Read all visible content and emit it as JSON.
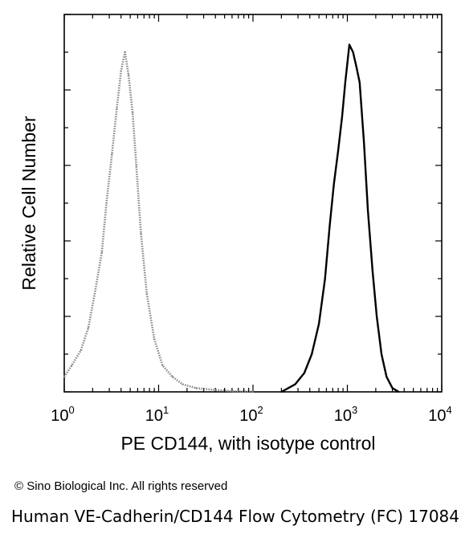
{
  "chart_data": {
    "type": "area",
    "title": "",
    "xlabel": "PE CD144, with isotype control",
    "ylabel": "Relative Cell Number",
    "x_scale": "log",
    "xlim": [
      1,
      10000
    ],
    "ylim": [
      0,
      1
    ],
    "x_ticks": [
      {
        "base": "10",
        "exp": "0",
        "value": 1
      },
      {
        "base": "10",
        "exp": "1",
        "value": 10
      },
      {
        "base": "10",
        "exp": "2",
        "value": 100
      },
      {
        "base": "10",
        "exp": "3",
        "value": 1000
      },
      {
        "base": "10",
        "exp": "4",
        "value": 10000
      }
    ],
    "grid": false,
    "series": [
      {
        "color": "#888888",
        "style": "dotted",
        "x": [
          1.0,
          1.2,
          1.5,
          1.8,
          2.1,
          2.5,
          2.8,
          3.2,
          3.6,
          4.0,
          4.4,
          4.8,
          5.3,
          5.8,
          6.5,
          7.5,
          9.0,
          11,
          14,
          18,
          25,
          40,
          60,
          100
        ],
        "y": [
          0.04,
          0.07,
          0.11,
          0.17,
          0.26,
          0.37,
          0.5,
          0.63,
          0.75,
          0.85,
          0.9,
          0.84,
          0.74,
          0.6,
          0.42,
          0.26,
          0.14,
          0.07,
          0.04,
          0.02,
          0.01,
          0.005,
          0.002,
          0.0
        ]
      },
      {
        "color": "#000000",
        "style": "solid",
        "x": [
          200,
          280,
          350,
          420,
          500,
          580,
          650,
          720,
          800,
          880,
          950,
          1050,
          1150,
          1250,
          1350,
          1500,
          1650,
          1850,
          2050,
          2300,
          2600,
          3000,
          3500
        ],
        "y": [
          0.0,
          0.02,
          0.05,
          0.1,
          0.18,
          0.3,
          0.44,
          0.55,
          0.64,
          0.73,
          0.82,
          0.92,
          0.9,
          0.86,
          0.82,
          0.66,
          0.48,
          0.32,
          0.2,
          0.1,
          0.04,
          0.01,
          0.0
        ]
      }
    ]
  },
  "copyright": "© Sino Biological Inc. All rights reserved",
  "caption": "Human VE-Cadherin/CD144 Flow Cytometry (FC) 17084"
}
